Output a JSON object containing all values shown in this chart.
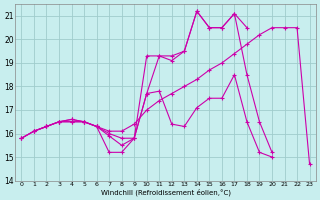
{
  "xlabel": "Windchill (Refroidissement éolien,°C)",
  "bg_color": "#c8eeee",
  "grid_color": "#a0cccc",
  "line_color": "#cc00aa",
  "xlim": [
    -0.5,
    23.5
  ],
  "ylim": [
    14,
    21.5
  ],
  "yticks": [
    14,
    15,
    16,
    17,
    18,
    19,
    20,
    21
  ],
  "xticks": [
    0,
    1,
    2,
    3,
    4,
    5,
    6,
    7,
    8,
    9,
    10,
    11,
    12,
    13,
    14,
    15,
    16,
    17,
    18,
    19,
    20,
    21,
    22,
    23
  ],
  "lines": [
    {
      "x": [
        0,
        1,
        2,
        3,
        4,
        5,
        6,
        7,
        8,
        9,
        10,
        11,
        12,
        13,
        14,
        15,
        16,
        17,
        18,
        19,
        20
      ],
      "y": [
        15.8,
        16.1,
        16.3,
        16.5,
        16.6,
        16.5,
        16.3,
        16.0,
        15.8,
        15.8,
        17.7,
        17.8,
        16.4,
        16.3,
        17.1,
        17.5,
        17.5,
        18.5,
        16.5,
        15.2,
        15.0
      ]
    },
    {
      "x": [
        0,
        1,
        2,
        3,
        4,
        5,
        6,
        7,
        8,
        9,
        10,
        11,
        12,
        13,
        14,
        15,
        16,
        17,
        18
      ],
      "y": [
        15.8,
        16.1,
        16.3,
        16.5,
        16.5,
        16.5,
        16.3,
        15.2,
        15.2,
        15.8,
        19.3,
        19.3,
        19.3,
        19.5,
        21.2,
        20.5,
        20.5,
        21.1,
        20.5
      ]
    },
    {
      "x": [
        0,
        1,
        2,
        3,
        4,
        5,
        6,
        7,
        8,
        9,
        10,
        11,
        12,
        13,
        14,
        15,
        16,
        17,
        18,
        19,
        20
      ],
      "y": [
        15.8,
        16.1,
        16.3,
        16.5,
        16.5,
        16.5,
        16.3,
        15.9,
        15.5,
        15.8,
        17.7,
        19.3,
        19.1,
        19.5,
        21.2,
        20.5,
        20.5,
        21.1,
        18.5,
        16.5,
        15.2
      ]
    },
    {
      "x": [
        1,
        2,
        3,
        4,
        5,
        6,
        7,
        8,
        9,
        10,
        11,
        12,
        13,
        14,
        15,
        16,
        17,
        18,
        19,
        20,
        21,
        22,
        23
      ],
      "y": [
        16.1,
        16.3,
        16.5,
        16.6,
        16.5,
        16.3,
        16.1,
        16.1,
        16.4,
        17.0,
        17.4,
        17.7,
        18.0,
        18.3,
        18.7,
        19.0,
        19.4,
        19.8,
        20.2,
        20.5,
        20.5,
        20.5,
        14.7
      ]
    }
  ]
}
